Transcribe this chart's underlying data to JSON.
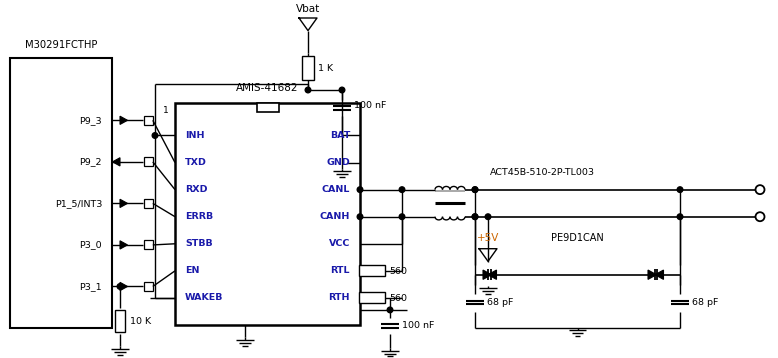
{
  "bg_color": "#ffffff",
  "ic_label": "AMIS-41682",
  "ic_left_pins": [
    "INH",
    "TXD",
    "RXD",
    "ERRB",
    "STBB",
    "EN",
    "WAKEB"
  ],
  "ic_right_pins": [
    "BAT",
    "GND",
    "CANL",
    "CANH",
    "VCC",
    "RTL",
    "RTH"
  ],
  "mcu_label": "M30291FCTHP",
  "mcu_pins": [
    "P9_3",
    "P9_2",
    "P1_5/INT3",
    "P3_0",
    "P3_1"
  ],
  "vbat_label": "Vbat",
  "r1k_label": "1 K",
  "r10k_label": "10 K",
  "c100nf_label": "100 nF",
  "c100nf2_label": "100 nF",
  "c68pf1_label": "68 pF",
  "c68pf2_label": "68 pF",
  "r560_1_label": "560",
  "r560_2_label": "560",
  "filter_label": "ACT45B-510-2P-TL003",
  "diode_label": "PE9D1CAN",
  "vcc_label": "+5V",
  "blue_color": "#1a1aaa",
  "orange_color": "#cc6600"
}
